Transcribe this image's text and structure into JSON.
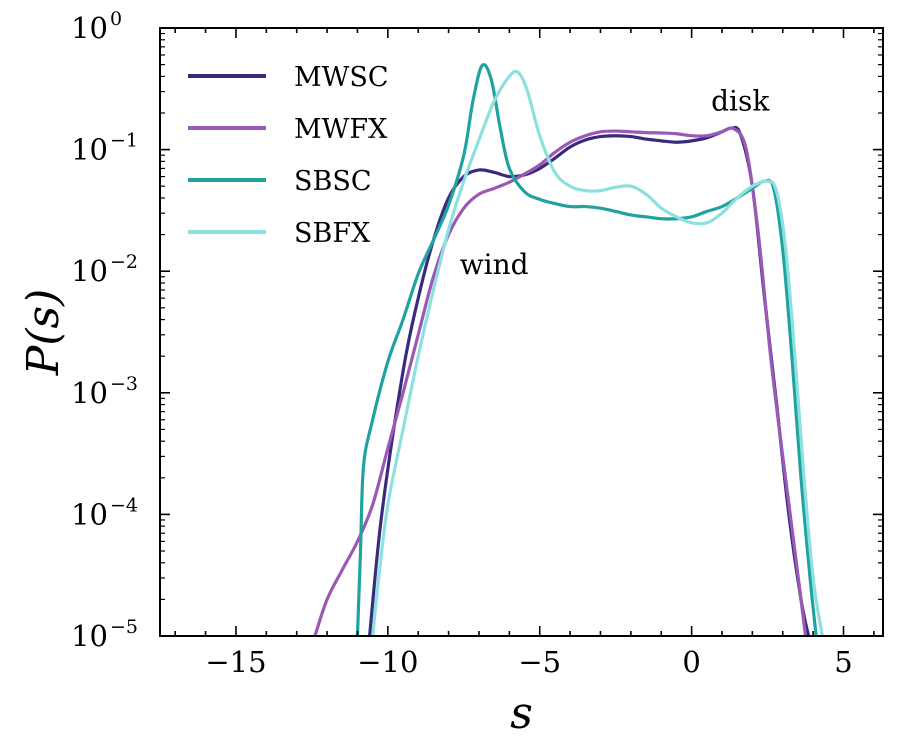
{
  "chart_data": {
    "type": "line",
    "title": "",
    "xlabel": "s",
    "ylabel": "P(s)",
    "xlim": [
      -17.5,
      6.3
    ],
    "yscale": "log",
    "ylim": [
      1e-05,
      1
    ],
    "xticks": [
      {
        "value": -15,
        "label": "−15"
      },
      {
        "value": -10,
        "label": "−10"
      },
      {
        "value": -5,
        "label": "−5"
      },
      {
        "value": 0,
        "label": "0"
      },
      {
        "value": 5,
        "label": "5"
      }
    ],
    "yticks": [
      {
        "exp": 0,
        "base": "10",
        "sup": "0"
      },
      {
        "exp": -1,
        "base": "10",
        "sup": "−1"
      },
      {
        "exp": -2,
        "base": "10",
        "sup": "−2"
      },
      {
        "exp": -3,
        "base": "10",
        "sup": "−3"
      },
      {
        "exp": -4,
        "base": "10",
        "sup": "−4"
      },
      {
        "exp": -5,
        "base": "10",
        "sup": "−5"
      }
    ],
    "legend_position": "upper-left",
    "annotations": [
      {
        "text": "disk",
        "x": 1.6,
        "y": 0.21
      },
      {
        "text": "wind",
        "x": -6.5,
        "y": 0.0095
      }
    ],
    "series": [
      {
        "name": "MWSC",
        "color": "#3a2a7e",
        "points": [
          [
            -10.6,
            1e-05
          ],
          [
            -10.2,
            0.0001
          ],
          [
            -9.5,
            0.0015
          ],
          [
            -9.0,
            0.006
          ],
          [
            -8.5,
            0.018
          ],
          [
            -8.0,
            0.04
          ],
          [
            -7.5,
            0.06
          ],
          [
            -7.0,
            0.068
          ],
          [
            -6.5,
            0.065
          ],
          [
            -6.0,
            0.06
          ],
          [
            -5.5,
            0.062
          ],
          [
            -5.0,
            0.07
          ],
          [
            -4.5,
            0.085
          ],
          [
            -4.0,
            0.105
          ],
          [
            -3.5,
            0.12
          ],
          [
            -3.0,
            0.128
          ],
          [
            -2.5,
            0.13
          ],
          [
            -2.0,
            0.128
          ],
          [
            -1.5,
            0.122
          ],
          [
            -1.0,
            0.118
          ],
          [
            -0.5,
            0.115
          ],
          [
            0.0,
            0.118
          ],
          [
            0.5,
            0.125
          ],
          [
            1.0,
            0.14
          ],
          [
            1.3,
            0.15
          ],
          [
            1.6,
            0.135
          ],
          [
            2.0,
            0.05
          ],
          [
            2.4,
            0.006
          ],
          [
            2.8,
            0.0008
          ],
          [
            3.2,
            0.0001
          ],
          [
            3.6,
            2e-05
          ],
          [
            3.85,
            1e-05
          ]
        ]
      },
      {
        "name": "MWFX",
        "color": "#9b59b6",
        "points": [
          [
            -12.4,
            1e-05
          ],
          [
            -12.0,
            2e-05
          ],
          [
            -11.5,
            3.5e-05
          ],
          [
            -11.0,
            6e-05
          ],
          [
            -10.5,
            0.00012
          ],
          [
            -10.0,
            0.00035
          ],
          [
            -9.5,
            0.001
          ],
          [
            -9.0,
            0.003
          ],
          [
            -8.5,
            0.009
          ],
          [
            -8.0,
            0.02
          ],
          [
            -7.5,
            0.033
          ],
          [
            -7.0,
            0.043
          ],
          [
            -6.5,
            0.048
          ],
          [
            -6.0,
            0.054
          ],
          [
            -5.5,
            0.063
          ],
          [
            -5.0,
            0.075
          ],
          [
            -4.5,
            0.095
          ],
          [
            -4.0,
            0.115
          ],
          [
            -3.5,
            0.13
          ],
          [
            -3.0,
            0.14
          ],
          [
            -2.5,
            0.142
          ],
          [
            -2.0,
            0.14
          ],
          [
            -1.5,
            0.138
          ],
          [
            -1.0,
            0.137
          ],
          [
            -0.5,
            0.135
          ],
          [
            0.0,
            0.13
          ],
          [
            0.5,
            0.13
          ],
          [
            1.0,
            0.14
          ],
          [
            1.4,
            0.148
          ],
          [
            1.8,
            0.1
          ],
          [
            2.2,
            0.02
          ],
          [
            2.6,
            0.002
          ],
          [
            3.0,
            0.0003
          ],
          [
            3.4,
            5e-05
          ],
          [
            3.75,
            1e-05
          ]
        ]
      },
      {
        "name": "SBSC",
        "color": "#20a39e",
        "points": [
          [
            -11.0,
            1e-05
          ],
          [
            -10.9,
            5e-05
          ],
          [
            -10.8,
            0.00025
          ],
          [
            -10.5,
            0.0006
          ],
          [
            -10.0,
            0.0018
          ],
          [
            -9.5,
            0.004
          ],
          [
            -9.0,
            0.0095
          ],
          [
            -8.5,
            0.018
          ],
          [
            -8.0,
            0.035
          ],
          [
            -7.5,
            0.09
          ],
          [
            -7.2,
            0.25
          ],
          [
            -6.9,
            0.49
          ],
          [
            -6.6,
            0.38
          ],
          [
            -6.3,
            0.15
          ],
          [
            -6.0,
            0.07
          ],
          [
            -5.5,
            0.045
          ],
          [
            -5.0,
            0.039
          ],
          [
            -4.5,
            0.036
          ],
          [
            -4.0,
            0.034
          ],
          [
            -3.5,
            0.034
          ],
          [
            -3.0,
            0.033
          ],
          [
            -2.5,
            0.031
          ],
          [
            -2.0,
            0.029
          ],
          [
            -1.5,
            0.028
          ],
          [
            -1.0,
            0.027
          ],
          [
            -0.5,
            0.027
          ],
          [
            0.0,
            0.028
          ],
          [
            0.5,
            0.031
          ],
          [
            1.0,
            0.034
          ],
          [
            1.5,
            0.04
          ],
          [
            2.0,
            0.048
          ],
          [
            2.4,
            0.055
          ],
          [
            2.7,
            0.048
          ],
          [
            3.0,
            0.015
          ],
          [
            3.3,
            0.002
          ],
          [
            3.6,
            0.0002
          ],
          [
            3.9,
            3e-05
          ],
          [
            4.1,
            1e-05
          ]
        ]
      },
      {
        "name": "SBFX",
        "color": "#8de0e0",
        "points": [
          [
            -10.5,
            1e-05
          ],
          [
            -10.3,
            3e-05
          ],
          [
            -10.0,
            0.00012
          ],
          [
            -9.5,
            0.0005
          ],
          [
            -9.0,
            0.002
          ],
          [
            -8.5,
            0.007
          ],
          [
            -8.0,
            0.022
          ],
          [
            -7.5,
            0.055
          ],
          [
            -7.0,
            0.12
          ],
          [
            -6.5,
            0.25
          ],
          [
            -6.0,
            0.4
          ],
          [
            -5.7,
            0.43
          ],
          [
            -5.4,
            0.3
          ],
          [
            -5.0,
            0.13
          ],
          [
            -4.5,
            0.065
          ],
          [
            -4.0,
            0.05
          ],
          [
            -3.5,
            0.046
          ],
          [
            -3.0,
            0.046
          ],
          [
            -2.5,
            0.049
          ],
          [
            -2.0,
            0.05
          ],
          [
            -1.5,
            0.043
          ],
          [
            -1.0,
            0.033
          ],
          [
            -0.5,
            0.028
          ],
          [
            0.0,
            0.025
          ],
          [
            0.5,
            0.025
          ],
          [
            1.0,
            0.03
          ],
          [
            1.5,
            0.04
          ],
          [
            2.0,
            0.05
          ],
          [
            2.5,
            0.055
          ],
          [
            2.8,
            0.045
          ],
          [
            3.1,
            0.015
          ],
          [
            3.4,
            0.002
          ],
          [
            3.7,
            0.0002
          ],
          [
            4.0,
            3e-05
          ],
          [
            4.3,
            1e-05
          ]
        ]
      }
    ]
  }
}
